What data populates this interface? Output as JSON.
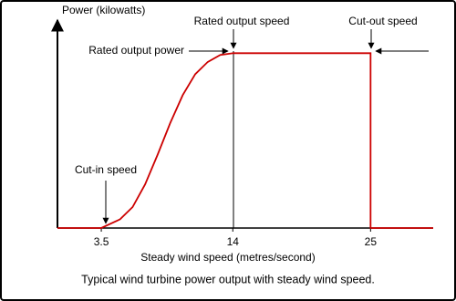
{
  "chart_data": {
    "type": "line",
    "caption": "Typical wind turbine power output with steady wind speed.",
    "x_label": "Steady wind speed (metres/second)",
    "y_label": "Power (kilowatts)",
    "x": [
      0,
      3.5,
      5,
      6,
      7,
      8,
      9,
      10,
      11,
      12,
      13,
      14,
      25,
      25,
      30
    ],
    "series": [
      {
        "color": "#cc0000",
        "values": [
          0,
          0,
          0.05,
          0.12,
          0.25,
          0.42,
          0.6,
          0.76,
          0.88,
          0.95,
          0.99,
          1,
          1,
          0,
          0
        ]
      }
    ],
    "xlim": [
      0,
      30
    ],
    "xticks": [
      3.5,
      14,
      25
    ],
    "ylim": [
      0,
      1.2
    ],
    "annotations": [
      "Cut-in speed",
      "Rated output speed",
      "Cut-out speed",
      "Rated output power"
    ]
  }
}
